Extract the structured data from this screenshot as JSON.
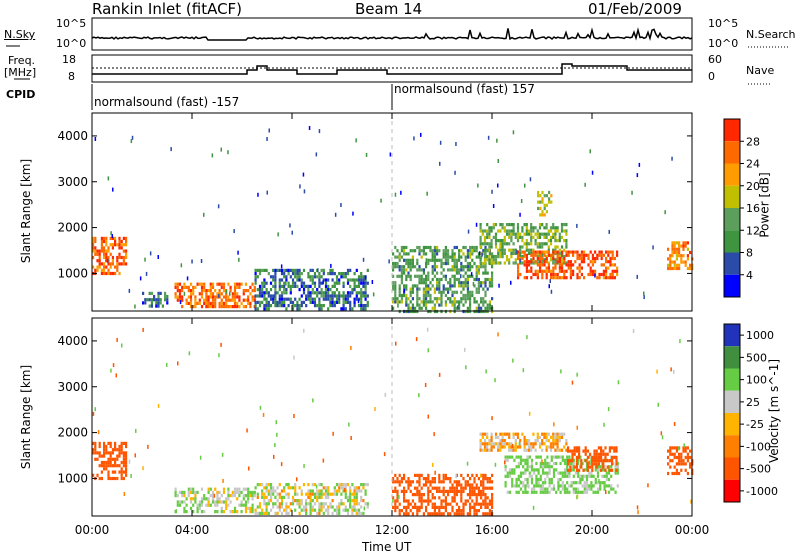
{
  "header": {
    "station": "Rankin Inlet (fitACF)",
    "beam": "Beam 14",
    "date": "01/Feb/2009"
  },
  "sky_panel": {
    "left_label": "N.Sky",
    "right_label": "N.Search",
    "left_ticks": [
      "10^5",
      "10^0"
    ],
    "right_ticks": [
      "10^5",
      "10^0"
    ]
  },
  "freq_panel": {
    "left_label_line1": "Freq.",
    "left_label_line2": "[MHz]",
    "right_label": "Nave",
    "left_ticks": [
      "18",
      "8"
    ],
    "right_ticks": [
      "60",
      "0"
    ]
  },
  "cpid": {
    "label": "CPID",
    "segments": [
      "normalsound (fast) -157",
      "normalsound (fast) 157"
    ]
  },
  "colors": {
    "power": [
      "#0000ff",
      "#2b4ba8",
      "#3f9440",
      "#5c9e5c",
      "#c0c000",
      "#ff9c00",
      "#ff6a00",
      "#ff2800"
    ],
    "velocity": [
      "#2233bb",
      "#3f8f3f",
      "#66cc44",
      "#c8c8c8",
      "#ffb400",
      "#ff8000",
      "#ff5500",
      "#ff0000"
    ]
  },
  "chart_data": [
    {
      "type": "heatmap",
      "title": "Power",
      "xlabel": "",
      "ylabel": "Slant Range [km]",
      "xlim": [
        "00:00",
        "24:00"
      ],
      "ylim": [
        180,
        4500
      ],
      "yticks": [
        "1000",
        "2000",
        "3000",
        "4000"
      ],
      "xticks": [
        "00:00",
        "04:00",
        "08:00",
        "12:00",
        "16:00",
        "20:00",
        "00:00"
      ],
      "colorbar_label": "Power [dB]",
      "colorbar_ticks": [
        "4",
        "8",
        "12",
        "16",
        "20",
        "24",
        "28"
      ],
      "echo_regions": [
        {
          "t_start": 0.0,
          "t_end": 1.4,
          "r_low": 1000,
          "r_high": 1800,
          "level_db": 26
        },
        {
          "t_start": 2.0,
          "t_end": 3.0,
          "r_low": 300,
          "r_high": 600,
          "level_db": 8
        },
        {
          "t_start": 3.3,
          "t_end": 6.5,
          "r_low": 250,
          "r_high": 800,
          "level_db": 26
        },
        {
          "t_start": 6.5,
          "t_end": 11.0,
          "r_low": 250,
          "r_high": 1100,
          "level_db": 8
        },
        {
          "t_start": 12.0,
          "t_end": 16.0,
          "r_low": 200,
          "r_high": 1600,
          "level_db": 12
        },
        {
          "t_start": 15.5,
          "t_end": 19.0,
          "r_low": 1200,
          "r_high": 2100,
          "level_db": 14
        },
        {
          "t_start": 17.0,
          "t_end": 21.0,
          "r_low": 900,
          "r_high": 1500,
          "level_db": 28
        },
        {
          "t_start": 17.8,
          "t_end": 18.4,
          "r_low": 2300,
          "r_high": 2800,
          "level_db": 18
        },
        {
          "t_start": 23.0,
          "t_end": 24.0,
          "r_low": 1100,
          "r_high": 1700,
          "level_db": 24
        }
      ]
    },
    {
      "type": "heatmap",
      "title": "Velocity",
      "xlabel": "Time UT",
      "ylabel": "Slant Range [km]",
      "xlim": [
        "00:00",
        "24:00"
      ],
      "ylim": [
        180,
        4500
      ],
      "yticks": [
        "1000",
        "2000",
        "3000",
        "4000"
      ],
      "xticks": [
        "00:00",
        "04:00",
        "08:00",
        "12:00",
        "16:00",
        "20:00",
        "00:00"
      ],
      "colorbar_label": "Velocity [m s^-1]",
      "colorbar_ticks": [
        "1000",
        "500",
        "100",
        "25",
        "-25",
        "-100",
        "-500",
        "-1000"
      ],
      "echo_regions": [
        {
          "t_start": 0.0,
          "t_end": 1.4,
          "r_low": 1000,
          "r_high": 1800,
          "velocity": -300
        },
        {
          "t_start": 3.3,
          "t_end": 6.5,
          "r_low": 250,
          "r_high": 800,
          "velocity": 80
        },
        {
          "t_start": 6.5,
          "t_end": 11.0,
          "r_low": 250,
          "r_high": 900,
          "velocity": 60
        },
        {
          "t_start": 12.0,
          "t_end": 16.0,
          "r_low": 200,
          "r_high": 1100,
          "velocity": -300
        },
        {
          "t_start": 15.5,
          "t_end": 19.0,
          "r_low": 1600,
          "r_high": 2000,
          "velocity": 0
        },
        {
          "t_start": 16.5,
          "t_end": 21.0,
          "r_low": 700,
          "r_high": 1500,
          "velocity": 150
        },
        {
          "t_start": 19.0,
          "t_end": 21.0,
          "r_low": 1200,
          "r_high": 1700,
          "velocity": -300
        },
        {
          "t_start": 23.0,
          "t_end": 24.0,
          "r_low": 1100,
          "r_high": 1700,
          "velocity": -300
        }
      ]
    }
  ]
}
